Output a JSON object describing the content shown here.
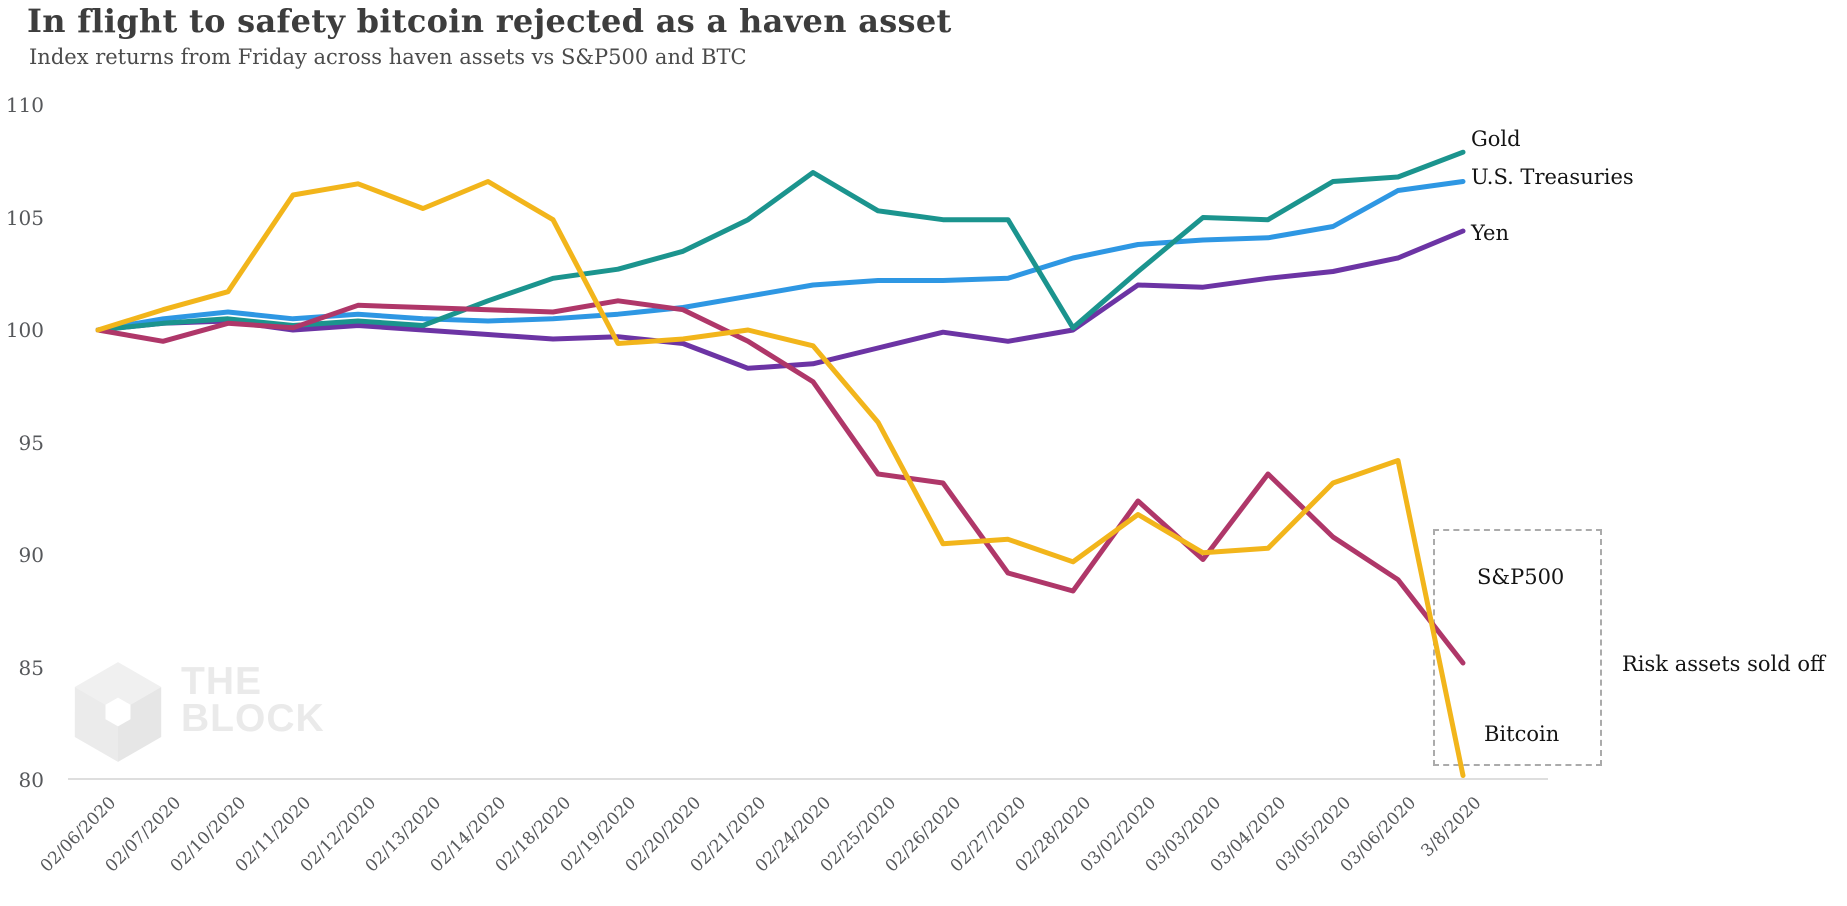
{
  "header": {
    "title": "In flight to safety bitcoin rejected as a haven asset",
    "subtitle": "Index returns from Friday across haven assets vs S&P500 and BTC"
  },
  "watermark": {
    "line1": "THE",
    "line2": "BLOCK"
  },
  "annotations": {
    "risk_note": "Risk assets sold off"
  },
  "chart_data": {
    "type": "line",
    "title": "In flight to safety bitcoin rejected as a haven asset",
    "subtitle": "Index returns from Friday across haven assets vs S&P500 and BTC",
    "xlabel": "",
    "ylabel": "",
    "ylim": [
      80,
      110
    ],
    "yticks": [
      110,
      105,
      100,
      95,
      90,
      85,
      80
    ],
    "grid": false,
    "legend_position": "right-end-labels",
    "categories": [
      "02/06/2020",
      "02/07/2020",
      "02/10/2020",
      "02/11/2020",
      "02/12/2020",
      "02/13/2020",
      "02/14/2020",
      "02/18/2020",
      "02/19/2020",
      "02/20/2020",
      "02/21/2020",
      "02/24/2020",
      "02/25/2020",
      "02/26/2020",
      "02/27/2020",
      "02/28/2020",
      "03/02/2020",
      "03/03/2020",
      "03/04/2020",
      "03/05/2020",
      "03/06/2020",
      "3/8/2020"
    ],
    "series": [
      {
        "name": "Gold",
        "color": "#1B948E",
        "values": [
          100.0,
          100.3,
          100.5,
          100.2,
          100.4,
          100.2,
          101.3,
          102.3,
          102.7,
          103.5,
          104.9,
          107.0,
          105.3,
          104.9,
          104.9,
          100.1,
          102.6,
          105.0,
          104.9,
          106.6,
          106.8,
          107.9
        ]
      },
      {
        "name": "U.S. Treasuries",
        "color": "#2E97E3",
        "values": [
          100.0,
          100.5,
          100.8,
          100.5,
          100.7,
          100.5,
          100.4,
          100.5,
          100.7,
          101.0,
          101.5,
          102.0,
          102.2,
          102.2,
          102.3,
          103.2,
          103.8,
          104.0,
          104.1,
          104.6,
          106.2,
          106.6
        ]
      },
      {
        "name": "Yen",
        "color": "#6C34A4",
        "values": [
          100.0,
          100.3,
          100.4,
          100.0,
          100.2,
          100.0,
          99.8,
          99.6,
          99.7,
          99.4,
          98.3,
          98.5,
          99.2,
          99.9,
          99.5,
          100.0,
          102.0,
          101.9,
          102.3,
          102.6,
          103.2,
          104.4
        ]
      },
      {
        "name": "S&P500",
        "color": "#AF3769",
        "values": [
          100.0,
          99.5,
          100.3,
          100.1,
          101.1,
          101.0,
          100.9,
          100.8,
          101.3,
          100.9,
          99.5,
          97.7,
          93.6,
          93.2,
          89.2,
          88.4,
          92.4,
          89.8,
          93.6,
          90.8,
          88.9,
          85.2
        ]
      },
      {
        "name": "Bitcoin",
        "color": "#F2B51B",
        "values": [
          100.0,
          100.9,
          101.7,
          106.0,
          106.5,
          105.4,
          106.6,
          104.9,
          99.4,
          99.6,
          100.0,
          99.3,
          95.9,
          90.5,
          90.7,
          89.7,
          91.8,
          90.1,
          90.3,
          93.2,
          94.2,
          80.2
        ]
      }
    ]
  }
}
